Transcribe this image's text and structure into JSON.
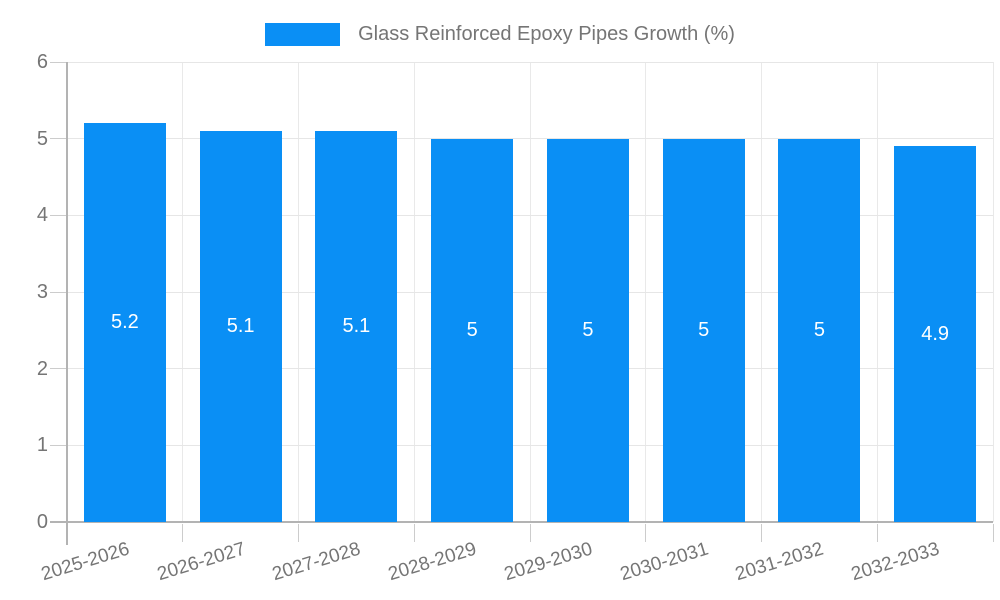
{
  "chart_data": {
    "type": "bar",
    "legend_label": "Glass Reinforced Epoxy Pipes Growth (%)",
    "categories": [
      "2025-2026",
      "2026-2027",
      "2027-2028",
      "2028-2029",
      "2029-2030",
      "2030-2031",
      "2031-2032",
      "2032-2033"
    ],
    "values": [
      5.2,
      5.1,
      5.1,
      5,
      5,
      5,
      5,
      4.9
    ],
    "ylim": [
      0,
      6
    ],
    "yticks": [
      0,
      1,
      2,
      3,
      4,
      5,
      6
    ],
    "legend_position": "top",
    "grid": "on",
    "xlabel": "",
    "ylabel": "",
    "colors": {
      "bar": "#0a8ff5",
      "bar_label": "#ffffff",
      "axis_text": "#757575",
      "gridline": "#e6e6e6",
      "vertical_gridline": "#e9e9e9",
      "axis_line": "#b3b3b3",
      "tick": "#cccccc",
      "background": "#ffffff"
    }
  }
}
